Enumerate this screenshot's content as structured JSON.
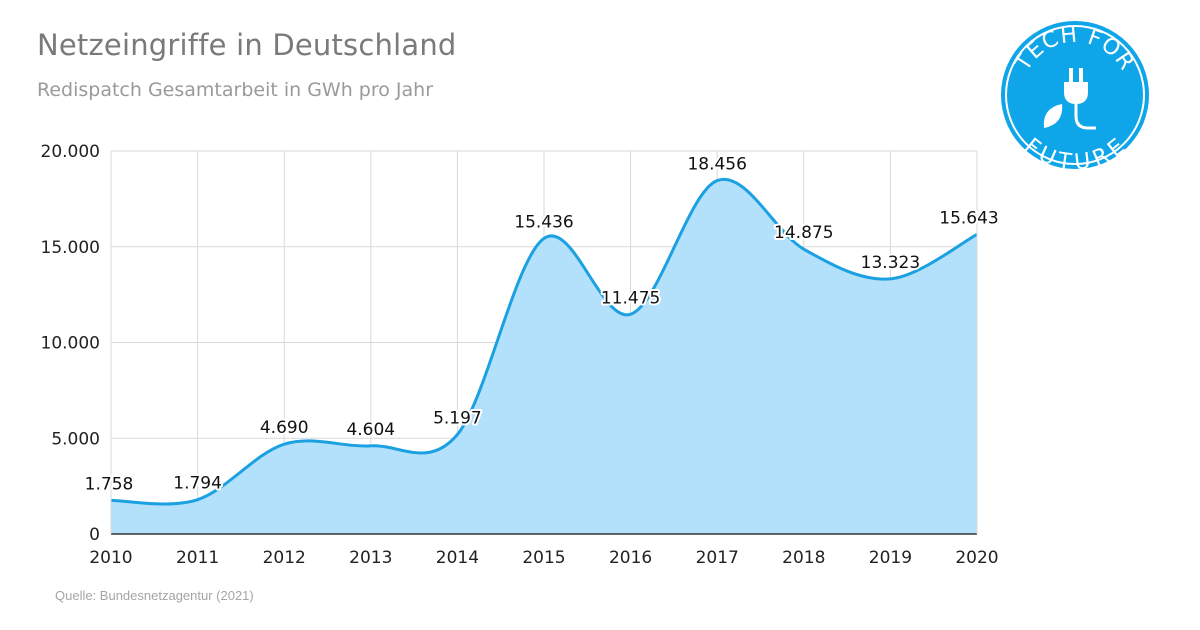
{
  "header": {
    "title": "Netzeingriffe in Deutschland",
    "subtitle": "Redispatch Gesamtarbeit in GWh pro Jahr"
  },
  "footer": {
    "source": "Quelle: Bundesnetzagentur (2021)"
  },
  "logo": {
    "text_top": "TECH FOR",
    "text_bottom": "FUTURE",
    "color": "#0ea5e9"
  },
  "colors": {
    "line": "#1ba1e2",
    "area": "#b3e0fa",
    "grid": "#d9d9d9",
    "axis": "#333333"
  },
  "chart_data": {
    "type": "area",
    "title": "Netzeingriffe in Deutschland",
    "subtitle": "Redispatch Gesamtarbeit in GWh pro Jahr",
    "x": [
      "2010",
      "2011",
      "2012",
      "2013",
      "2014",
      "2015",
      "2016",
      "2017",
      "2018",
      "2019",
      "2020"
    ],
    "values": [
      1758,
      1794,
      4690,
      4604,
      5197,
      15436,
      11475,
      18456,
      14875,
      13323,
      15643
    ],
    "data_labels": [
      "1.758",
      "1.794",
      "4.690",
      "4.604",
      "5.197",
      "15.436",
      "11.475",
      "18.456",
      "14.875",
      "13.323",
      "15.643"
    ],
    "ylim": [
      0,
      20000
    ],
    "yticks": [
      0,
      5000,
      10000,
      15000,
      20000
    ],
    "ytick_labels": [
      "0",
      "5.000",
      "10.000",
      "15.000",
      "20.000"
    ],
    "grid": true,
    "smooth": true,
    "legend": "none"
  }
}
